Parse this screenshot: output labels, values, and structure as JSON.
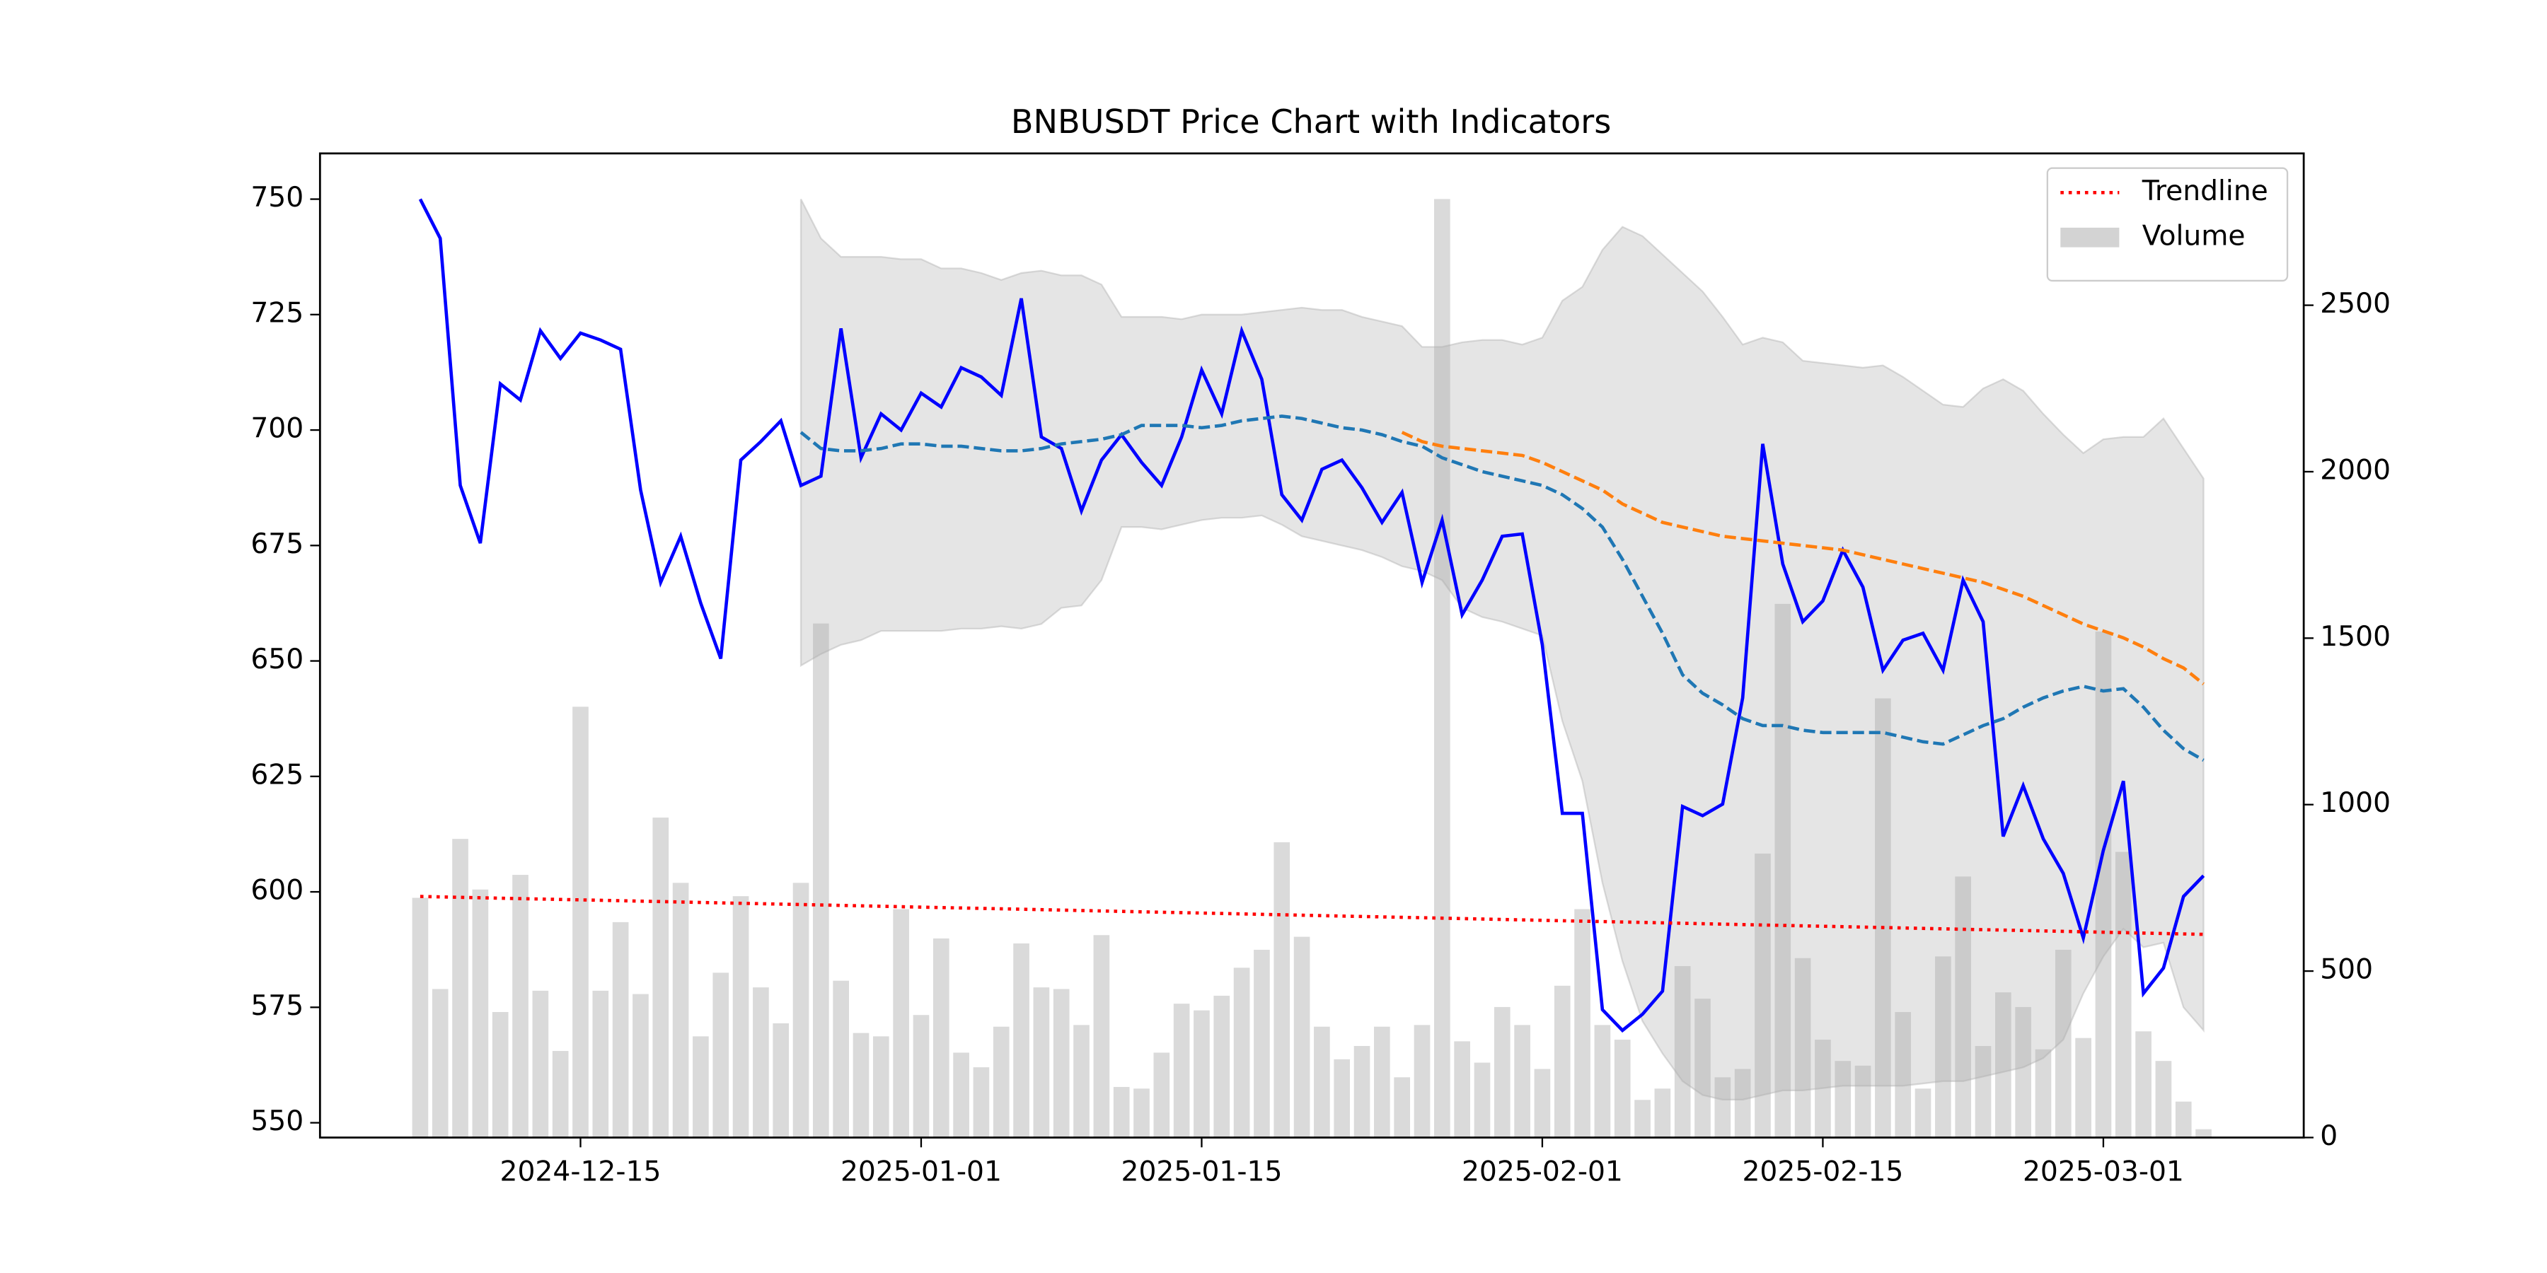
{
  "chart_data": {
    "type": "line",
    "title": "BNBUSDT Price Chart with Indicators",
    "x": [
      "2024-12-07",
      "2024-12-08",
      "2024-12-09",
      "2024-12-10",
      "2024-12-11",
      "2024-12-12",
      "2024-12-13",
      "2024-12-14",
      "2024-12-15",
      "2024-12-16",
      "2024-12-17",
      "2024-12-18",
      "2024-12-19",
      "2024-12-20",
      "2024-12-21",
      "2024-12-22",
      "2024-12-23",
      "2024-12-24",
      "2024-12-25",
      "2024-12-26",
      "2024-12-27",
      "2024-12-28",
      "2024-12-29",
      "2024-12-30",
      "2024-12-31",
      "2025-01-01",
      "2025-01-02",
      "2025-01-03",
      "2025-01-04",
      "2025-01-05",
      "2025-01-06",
      "2025-01-07",
      "2025-01-08",
      "2025-01-09",
      "2025-01-10",
      "2025-01-11",
      "2025-01-12",
      "2025-01-13",
      "2025-01-14",
      "2025-01-15",
      "2025-01-16",
      "2025-01-17",
      "2025-01-18",
      "2025-01-19",
      "2025-01-20",
      "2025-01-21",
      "2025-01-22",
      "2025-01-23",
      "2025-01-24",
      "2025-01-25",
      "2025-01-26",
      "2025-01-27",
      "2025-01-28",
      "2025-01-29",
      "2025-01-30",
      "2025-01-31",
      "2025-02-01",
      "2025-02-02",
      "2025-02-03",
      "2025-02-04",
      "2025-02-05",
      "2025-02-06",
      "2025-02-07",
      "2025-02-08",
      "2025-02-09",
      "2025-02-10",
      "2025-02-11",
      "2025-02-12",
      "2025-02-13",
      "2025-02-14",
      "2025-02-15",
      "2025-02-16",
      "2025-02-17",
      "2025-02-18",
      "2025-02-19",
      "2025-02-20",
      "2025-02-21",
      "2025-02-22",
      "2025-02-23",
      "2025-02-24",
      "2025-02-25",
      "2025-02-26",
      "2025-02-27",
      "2025-02-28",
      "2025-03-01",
      "2025-03-02",
      "2025-03-03",
      "2025-03-04",
      "2025-03-05",
      "2025-03-06"
    ],
    "series": [
      {
        "style": "bar",
        "name": "Volume",
        "color": "#d3d3d3",
        "axis": "y2",
        "values": [
          720,
          446,
          897,
          745,
          377,
          789,
          441,
          260,
          1294,
          441,
          647,
          431,
          961,
          765,
          304,
          495,
          725,
          451,
          343,
          765,
          1544,
          471,
          314,
          304,
          686,
          368,
          598,
          255,
          211,
          333,
          583,
          451,
          446,
          338,
          608,
          152,
          147,
          255,
          402,
          382,
          426,
          510,
          564,
          887,
          603,
          333,
          235,
          275,
          333,
          181,
          338,
          2819,
          289,
          225,
          392,
          338,
          206,
          456,
          686,
          338,
          294,
          113,
          147,
          515,
          417,
          181,
          206,
          853,
          1603,
          539,
          294,
          230,
          216,
          1319,
          377,
          147,
          544,
          784,
          275,
          436,
          392,
          265,
          564,
          299,
          1520,
          858,
          319,
          230,
          108,
          25
        ]
      },
      {
        "style": "band",
        "color": "#a9a9a9",
        "upper": [
          null,
          null,
          null,
          null,
          null,
          null,
          null,
          null,
          null,
          null,
          null,
          null,
          null,
          null,
          null,
          null,
          null,
          null,
          null,
          750,
          741.5,
          737.5,
          737.5,
          737.5,
          737,
          737,
          735,
          735,
          734,
          732.5,
          734,
          734.5,
          733.5,
          733.5,
          731.5,
          724.5,
          724.5,
          724.5,
          724,
          725,
          725,
          725,
          725.5,
          726,
          726.5,
          726,
          726,
          724.5,
          723.5,
          722.5,
          718,
          718,
          719,
          719.5,
          719.5,
          718.5,
          720,
          728,
          731,
          739,
          744,
          742,
          738,
          734,
          730,
          724.5,
          718.5,
          720,
          719,
          715,
          714.5,
          714,
          713.5,
          714,
          711.5,
          708.5,
          705.5,
          705,
          709,
          711,
          708.5,
          703.5,
          699,
          695,
          698,
          698.5,
          698.5,
          702.5,
          696,
          689.5
        ],
        "lower": [
          null,
          null,
          null,
          null,
          null,
          null,
          null,
          null,
          null,
          null,
          null,
          null,
          null,
          null,
          null,
          null,
          null,
          null,
          null,
          649,
          651.5,
          653.5,
          654.5,
          656.5,
          656.5,
          656.5,
          656.5,
          657,
          657,
          657.5,
          657,
          658,
          661.5,
          662,
          667.5,
          679,
          679,
          678.5,
          679.5,
          680.5,
          681,
          681,
          681.5,
          679.5,
          677,
          676,
          675,
          674,
          672.5,
          670.5,
          669.5,
          667.5,
          661.5,
          659.5,
          658.5,
          657,
          655.5,
          637,
          624,
          602,
          585,
          572,
          565,
          559,
          556,
          555,
          555,
          556,
          557,
          557,
          557.5,
          558,
          558,
          558,
          558,
          558.5,
          559,
          559,
          560,
          561,
          562,
          564,
          568,
          578,
          586,
          592,
          588,
          589,
          575,
          570
        ]
      },
      {
        "style": "solid",
        "color": "#0000ff",
        "values": [
          750,
          741.5,
          688,
          675.5,
          710,
          706.5,
          721.5,
          715.5,
          721,
          719.5,
          717.5,
          687,
          667,
          677,
          662.5,
          650.5,
          693.5,
          697.5,
          702,
          688,
          690,
          722,
          694,
          703.5,
          700,
          708,
          705,
          713.5,
          711.5,
          707.5,
          728.5,
          698.5,
          696,
          682.5,
          693.5,
          699,
          693,
          688,
          698.5,
          713,
          703.5,
          721.5,
          711,
          686,
          680.5,
          691.5,
          693.5,
          687.5,
          680,
          686.5,
          667,
          680.5,
          660,
          667.5,
          677,
          677.5,
          653.5,
          617,
          617,
          574.5,
          570,
          573.5,
          578.5,
          618.5,
          616.5,
          619,
          642,
          697,
          671,
          658.5,
          663,
          674,
          666,
          648,
          654.5,
          656,
          648,
          667.5,
          658.5,
          612,
          623,
          611.5,
          604,
          590,
          609,
          624,
          578,
          583.5,
          599,
          603.5
        ]
      },
      {
        "style": "dashed",
        "color": "#1f77b4",
        "values": [
          null,
          null,
          null,
          null,
          null,
          null,
          null,
          null,
          null,
          null,
          null,
          null,
          null,
          null,
          null,
          null,
          null,
          null,
          null,
          699.5,
          696,
          695.5,
          695.5,
          696,
          697,
          697,
          696.5,
          696.5,
          696,
          695.5,
          695.5,
          696,
          697,
          697.5,
          698,
          699,
          701,
          701,
          701,
          700.5,
          701,
          702,
          702.5,
          703,
          702.5,
          701.5,
          700.5,
          700,
          699,
          697.5,
          696.5,
          694,
          692.5,
          691,
          690,
          689,
          688,
          686,
          683,
          679,
          672,
          664,
          656,
          647,
          643,
          640.5,
          637.5,
          636,
          636,
          635,
          634.5,
          634.5,
          634.5,
          634.5,
          633.5,
          632.5,
          632,
          634,
          636,
          637.5,
          640,
          642,
          643.5,
          644.5,
          643.5,
          644,
          640,
          635,
          631,
          628.5
        ]
      },
      {
        "style": "dashed",
        "color": "#ff7f0e",
        "values": [
          null,
          null,
          null,
          null,
          null,
          null,
          null,
          null,
          null,
          null,
          null,
          null,
          null,
          null,
          null,
          null,
          null,
          null,
          null,
          null,
          null,
          null,
          null,
          null,
          null,
          null,
          null,
          null,
          null,
          null,
          null,
          null,
          null,
          null,
          null,
          null,
          null,
          null,
          null,
          null,
          null,
          null,
          null,
          null,
          null,
          null,
          null,
          null,
          null,
          699.5,
          697.5,
          696.5,
          696,
          695.5,
          695,
          694.5,
          693,
          691,
          689,
          687,
          684,
          682,
          680,
          679,
          678,
          677,
          676.5,
          676,
          675.5,
          675,
          674.5,
          674,
          673,
          672,
          671,
          670,
          669,
          668,
          667,
          665.5,
          664,
          662,
          660,
          658,
          656.5,
          655,
          653,
          650.5,
          648.5,
          645
        ]
      },
      {
        "style": "dotted",
        "name": "Trendline",
        "color": "#ff0000",
        "x": [
          "2024-12-07",
          "2025-03-06"
        ],
        "values": [
          599,
          590.8
        ]
      }
    ],
    "xlim": [
      "2024-12-02",
      "2025-03-11"
    ],
    "xticks": [
      "2024-12-15",
      "2025-01-01",
      "2025-01-15",
      "2025-02-01",
      "2025-02-15",
      "2025-03-01"
    ],
    "ylim": [
      546.8,
      759.9
    ],
    "yticks": [
      550,
      575,
      600,
      625,
      650,
      675,
      700,
      725,
      750
    ],
    "y2lim": [
      0,
      2956
    ],
    "y2ticks": [
      0,
      500,
      1000,
      1500,
      2000,
      2500
    ],
    "legend": "upper right"
  }
}
